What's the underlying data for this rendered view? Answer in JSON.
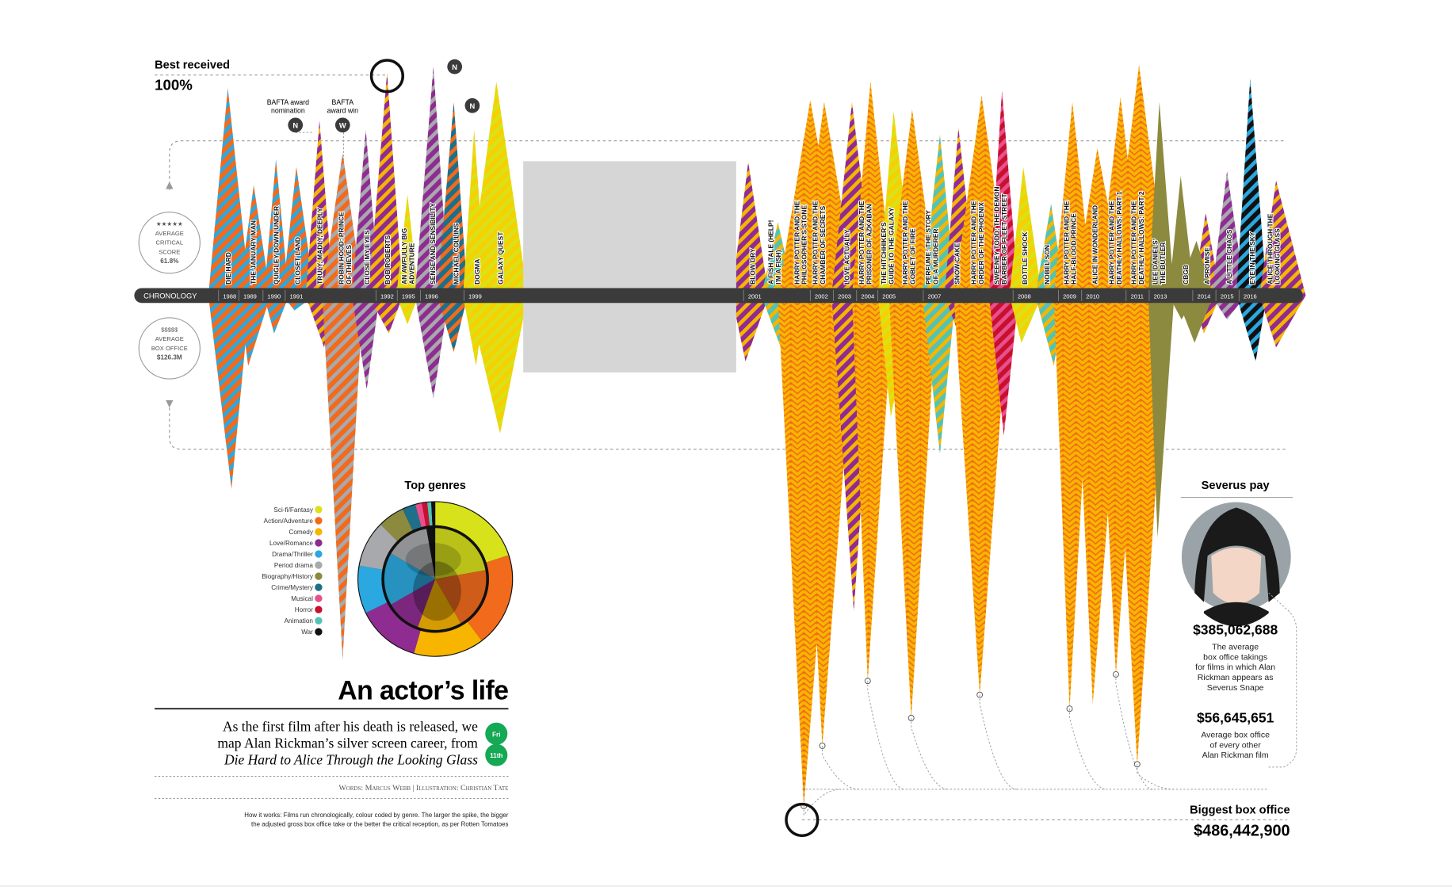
{
  "header": {
    "best_received_label": "Best received",
    "best_received_value": "100%",
    "bafta_nom_line1": "BAFTA award",
    "bafta_nom_line2": "nomination",
    "bafta_win_line1": "BAFTA",
    "bafta_win_line2": "award win",
    "nom_badge": "N",
    "win_badge": "W"
  },
  "axis": {
    "chronology_label": "CHRONOLOGY",
    "score_circle": [
      "★★★★★",
      "AVERAGE",
      "CRITICAL",
      "SCORE",
      "61.8%"
    ],
    "box_circle": [
      "$$$$$",
      "AVERAGE",
      "BOX OFFICE",
      "$126.3M"
    ]
  },
  "genres_panel": {
    "title": "Top genres",
    "legend": [
      {
        "name": "Sci-fi/Fantasy",
        "color": "#d8e21b"
      },
      {
        "name": "Action/Adventure",
        "color": "#f26a1b"
      },
      {
        "name": "Comedy",
        "color": "#f7b500"
      },
      {
        "name": "Love/Romance",
        "color": "#8e2c91"
      },
      {
        "name": "Drama/Thriller",
        "color": "#2ba8df"
      },
      {
        "name": "Period drama",
        "color": "#a7a9ac"
      },
      {
        "name": "Biography/History",
        "color": "#8c8a3e"
      },
      {
        "name": "Crime/Mystery",
        "color": "#1d6f8a"
      },
      {
        "name": "Musical",
        "color": "#e8508d"
      },
      {
        "name": "Horror",
        "color": "#c8102e"
      },
      {
        "name": "Animation",
        "color": "#53c3b4"
      },
      {
        "name": "War",
        "color": "#111111"
      }
    ]
  },
  "title_block": {
    "title": "An actor’s life",
    "standfirst_line1": "As the first film after his death is released, we",
    "standfirst_line2": "map Alan Rickman’s silver screen career, from",
    "standfirst_line3": "Die Hard to Alice Through the Looking Glass",
    "badge_top": "Fri",
    "badge_bottom": "11th",
    "credits": "Words: Marcus Webb  |  Illustration: Christian Tate",
    "how_line1": "How it works: Films run chronologically, colour coded by genre. The larger the spike, the bigger",
    "how_line2": "the adjusted gross box office take or the better the critical reception, as per Rotten Tomatoes"
  },
  "severus": {
    "title": "Severus pay",
    "value1": "$385,062,688",
    "desc1": [
      "The average",
      "box office takings",
      "for films in which Alan",
      "Rickman appears as",
      "Severus Snape"
    ],
    "value2": "$56,645,651",
    "desc2": [
      "Average box office",
      "of every other",
      "Alan Rickman film"
    ]
  },
  "biggest": {
    "label": "Biggest box office",
    "value": "$486,442,900"
  },
  "chart_data": {
    "type": "area",
    "years": [
      "1988",
      "1989",
      "1990",
      "1991",
      "1992",
      "1995",
      "1996",
      "1999",
      "2001",
      "2002",
      "2003",
      "2004",
      "2005",
      "2007",
      "2008",
      "2009",
      "2010",
      "2011",
      "2013",
      "2014",
      "2015",
      "2016"
    ],
    "films": [
      {
        "title": "DIE HARD",
        "genre": "Action/Adventure"
      },
      {
        "title": "THE JANUARY MAN",
        "genre": "Drama/Thriller"
      },
      {
        "title": "QUIGLEY DOWN UNDER",
        "genre": "Action/Adventure"
      },
      {
        "title": "CLOSET LAND",
        "genre": "Drama/Thriller"
      },
      {
        "title": "TRULY, MADLY, DEEPLY",
        "genre": "Love/Romance"
      },
      {
        "title": "ROBIN HOOD: PRINCE OF THIEVES",
        "genre": "Action/Adventure"
      },
      {
        "title": "CLOSE MY EYES",
        "genre": "Love/Romance"
      },
      {
        "title": "BOB ROBERTS",
        "genre": "Comedy"
      },
      {
        "title": "AN AWFULLY BIG ADVENTURE",
        "genre": "Comedy"
      },
      {
        "title": "SENSE AND SENSIBILITY",
        "genre": "Period drama"
      },
      {
        "title": "MICHAEL COLLINS",
        "genre": "Biography/History"
      },
      {
        "title": "DOGMA",
        "genre": "Comedy"
      },
      {
        "title": "GALAXY QUEST",
        "genre": "Sci-fi/Fantasy"
      },
      {
        "title": "BLOW DRY",
        "genre": "Comedy"
      },
      {
        "title": "A FISH TALE (HELP! I'M A FISH)",
        "genre": "Animation"
      },
      {
        "title": "HARRY POTTER AND THE PHILOSOPHER'S STONE",
        "genre": "Sci-fi/Fantasy"
      },
      {
        "title": "HARRY POTTER AND THE CHAMBER OF SECRETS",
        "genre": "Sci-fi/Fantasy"
      },
      {
        "title": "LOVE ACTUALLY",
        "genre": "Love/Romance"
      },
      {
        "title": "HARRY POTTER AND THE PRISONER OF AZKABAN",
        "genre": "Sci-fi/Fantasy"
      },
      {
        "title": "THE HITCHHIKER'S GUIDE TO THE GALAXY",
        "genre": "Sci-fi/Fantasy"
      },
      {
        "title": "HARRY POTTER AND THE GOBLET OF FIRE",
        "genre": "Sci-fi/Fantasy"
      },
      {
        "title": "PERFUME: THE STORY OF A MURDERER",
        "genre": "Crime/Mystery"
      },
      {
        "title": "SNOW CAKE",
        "genre": "Drama/Thriller"
      },
      {
        "title": "HARRY POTTER AND THE ORDER OF THE PHOENIX",
        "genre": "Sci-fi/Fantasy"
      },
      {
        "title": "SWEENEY TODD: THE DEMON BARBER OF FLEET STREET",
        "genre": "Musical"
      },
      {
        "title": "BOTTLE SHOCK",
        "genre": "Comedy"
      },
      {
        "title": "NOBEL SON",
        "genre": "Crime/Mystery"
      },
      {
        "title": "HARRY POTTER AND THE HALF-BLOOD PRINCE",
        "genre": "Sci-fi/Fantasy"
      },
      {
        "title": "ALICE IN WONDERLAND",
        "genre": "Sci-fi/Fantasy"
      },
      {
        "title": "HARRY POTTER AND THE DEATHLY HALLOWS: PART 1",
        "genre": "Sci-fi/Fantasy"
      },
      {
        "title": "HARRY POTTER AND THE DEATHLY HALLOWS: PART 2",
        "genre": "Sci-fi/Fantasy"
      },
      {
        "title": "LEE DANIELS' THE BUTLER",
        "genre": "Biography/History"
      },
      {
        "title": "CBGB",
        "genre": "Biography/History"
      },
      {
        "title": "A PROMISE",
        "genre": "Love/Romance"
      },
      {
        "title": "A LITTLE CHAOS",
        "genre": "Period drama"
      },
      {
        "title": "EYE IN THE SKY",
        "genre": "War"
      },
      {
        "title": "ALICE THROUGH THE LOOKING GLASS",
        "genre": "Sci-fi/Fantasy"
      }
    ]
  }
}
